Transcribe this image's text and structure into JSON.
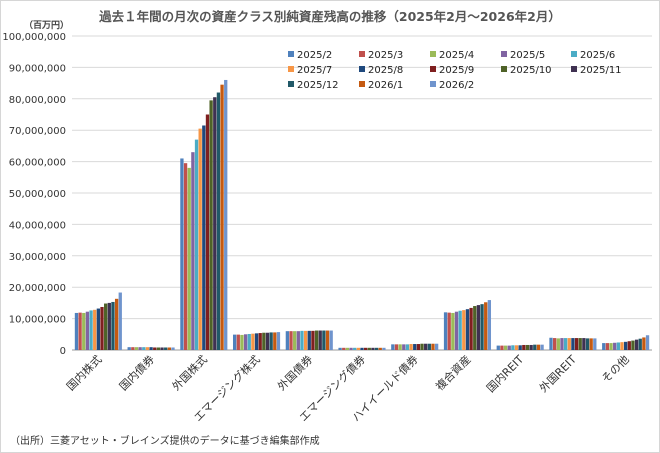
{
  "title": "過去１年間の月次の資産クラス別純資産残高の推移（2025年2月～2026年2月）",
  "unit_label": "（百万円）",
  "source_note": "（出所）三菱アセット・ブレインズ提供のデータに基づき編集部作成",
  "chart_data": {
    "type": "bar",
    "title": "過去１年間の月次の資産クラス別純資産残高の推移（2025年2月～2026年2月）",
    "ylabel": "（百万円）",
    "xlabel": "",
    "ylim": [
      0,
      100000000
    ],
    "yticks": [
      0,
      10000000,
      20000000,
      30000000,
      40000000,
      50000000,
      60000000,
      70000000,
      80000000,
      90000000,
      100000000
    ],
    "ytick_labels": [
      "0",
      "10,000,000",
      "20,000,000",
      "30,000,000",
      "40,000,000",
      "50,000,000",
      "60,000,000",
      "70,000,000",
      "80,000,000",
      "90,000,000",
      "100,000,000"
    ],
    "grid": true,
    "legend_position": "top-right",
    "categories": [
      "国内株式",
      "国内債券",
      "外国株式",
      "エマージング株式",
      "外国債券",
      "エマージング債券",
      "ハイイールド債券",
      "複合資産",
      "国内REIT",
      "外国REIT",
      "その他"
    ],
    "series": [
      {
        "name": "2025/2",
        "color": "#4f81bd",
        "values": [
          11800000,
          900000,
          61000000,
          4900000,
          6000000,
          700000,
          1800000,
          12000000,
          1400000,
          3900000,
          2200000
        ]
      },
      {
        "name": "2025/3",
        "color": "#c0504d",
        "values": [
          11900000,
          900000,
          59500000,
          4900000,
          6000000,
          700000,
          1800000,
          11900000,
          1400000,
          3800000,
          2200000
        ]
      },
      {
        "name": "2025/4",
        "color": "#9bbb59",
        "values": [
          11800000,
          900000,
          58000000,
          4800000,
          6000000,
          700000,
          1800000,
          11800000,
          1400000,
          3700000,
          2200000
        ]
      },
      {
        "name": "2025/5",
        "color": "#8064a2",
        "values": [
          12200000,
          900000,
          63000000,
          5000000,
          6000000,
          700000,
          1800000,
          12200000,
          1400000,
          3800000,
          2300000
        ]
      },
      {
        "name": "2025/6",
        "color": "#4bacc6",
        "values": [
          12600000,
          900000,
          67000000,
          5100000,
          6100000,
          700000,
          1800000,
          12500000,
          1500000,
          3800000,
          2400000
        ]
      },
      {
        "name": "2025/7",
        "color": "#f79646",
        "values": [
          12800000,
          900000,
          70500000,
          5200000,
          6100000,
          700000,
          1900000,
          12700000,
          1500000,
          3800000,
          2500000
        ]
      },
      {
        "name": "2025/8",
        "color": "#1f497d",
        "values": [
          13200000,
          900000,
          71500000,
          5300000,
          6100000,
          700000,
          1900000,
          13000000,
          1500000,
          3800000,
          2600000
        ]
      },
      {
        "name": "2025/9",
        "color": "#7f1f1f",
        "values": [
          13700000,
          800000,
          75000000,
          5400000,
          6100000,
          700000,
          1900000,
          13400000,
          1600000,
          3800000,
          2800000
        ]
      },
      {
        "name": "2025/10",
        "color": "#4f6228",
        "values": [
          14800000,
          800000,
          79500000,
          5500000,
          6200000,
          700000,
          2000000,
          14000000,
          1600000,
          3800000,
          3000000
        ]
      },
      {
        "name": "2025/11",
        "color": "#3f3151",
        "values": [
          15000000,
          800000,
          80500000,
          5500000,
          6200000,
          700000,
          2000000,
          14300000,
          1600000,
          3800000,
          3300000
        ]
      },
      {
        "name": "2025/12",
        "color": "#215968",
        "values": [
          15300000,
          800000,
          82000000,
          5600000,
          6200000,
          700000,
          2000000,
          14600000,
          1700000,
          3700000,
          3600000
        ]
      },
      {
        "name": "2026/1",
        "color": "#c55a11",
        "values": [
          16300000,
          800000,
          84500000,
          5600000,
          6200000,
          700000,
          2000000,
          15200000,
          1700000,
          3700000,
          4000000
        ]
      },
      {
        "name": "2026/2",
        "color": "#6f94cd",
        "values": [
          18300000,
          800000,
          86000000,
          5700000,
          6200000,
          700000,
          2000000,
          15900000,
          1700000,
          3700000,
          4700000
        ]
      }
    ]
  }
}
